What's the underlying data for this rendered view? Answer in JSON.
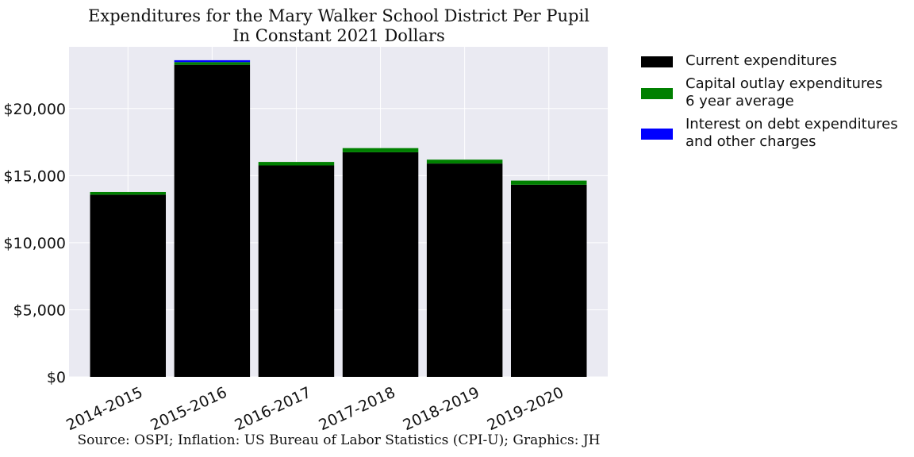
{
  "chart_data": {
    "type": "bar",
    "stacked": true,
    "title": "Expenditures for the Mary Walker School District Per Pupil",
    "subtitle": "In Constant 2021 Dollars",
    "source": "Source: OSPI; Inflation: US Bureau of Labor Statistics (CPI-U); Graphics: JH",
    "categories": [
      "2014-2015",
      "2015-2016",
      "2016-2017",
      "2017-2018",
      "2018-2019",
      "2019-2020"
    ],
    "series": [
      {
        "name": "Current expenditures",
        "color": "#000000",
        "values": [
          13580,
          23260,
          15760,
          16740,
          15900,
          14320
        ]
      },
      {
        "name": "Capital outlay expenditures\n6 year average",
        "color": "#008000",
        "values": [
          200,
          200,
          260,
          310,
          290,
          310
        ]
      },
      {
        "name": "Interest on debt expenditures\nand other charges",
        "color": "#0000ff",
        "values": [
          0,
          140,
          0,
          0,
          0,
          0
        ]
      }
    ],
    "ylim": [
      0,
      24600
    ],
    "yticks": [
      0,
      5000,
      10000,
      15000,
      20000
    ],
    "ytick_labels": [
      "$0",
      "$5,000",
      "$10,000",
      "$15,000",
      "$20,000"
    ],
    "xlabel": "",
    "ylabel": "",
    "grid": true,
    "legend_position": "outside-right"
  }
}
